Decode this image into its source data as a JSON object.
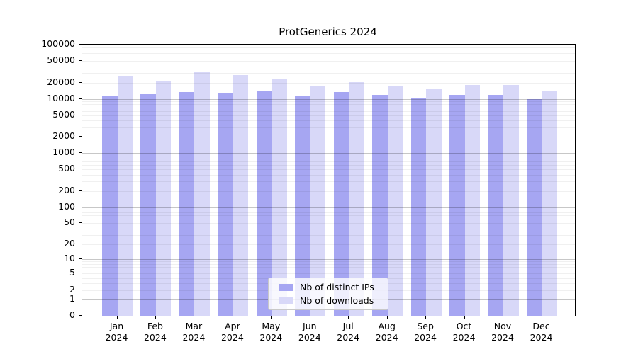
{
  "figure": {
    "title": "ProtGenerics 2024",
    "background": "#ffffff"
  },
  "chart_data": {
    "type": "bar",
    "title": "ProtGenerics 2024",
    "scale": "log10(x+1)",
    "categories": [
      "Jan",
      "Feb",
      "Mar",
      "Apr",
      "May",
      "Jun",
      "Jul",
      "Aug",
      "Sep",
      "Oct",
      "Nov",
      "Dec"
    ],
    "category_year": "2024",
    "series": [
      {
        "name": "Nb of distinct IPs",
        "color": "#a6a6f2",
        "values": [
          11400,
          12200,
          13500,
          12900,
          14100,
          11200,
          13200,
          12000,
          10200,
          11700,
          11700,
          9800
        ]
      },
      {
        "name": "Nb of downloads",
        "color": "#d8d8f8",
        "values": [
          25800,
          20900,
          30900,
          27400,
          22900,
          17600,
          20400,
          17400,
          15500,
          17800,
          18000,
          14000
        ]
      }
    ],
    "yticks": [
      0,
      1,
      2,
      5,
      10,
      20,
      50,
      100,
      200,
      500,
      1000,
      2000,
      5000,
      10000,
      20000,
      50000,
      100000
    ],
    "ylim": [
      0,
      100000
    ],
    "xlabel": "",
    "ylabel": "",
    "grid": {
      "minor_color": "rgba(0,0,0,0.06)",
      "major_color": "rgba(0,0,0,0.22)",
      "minor_values_rule": "k*10^e for k=2..9, e=0..4",
      "major_values": [
        1,
        10,
        100,
        1000,
        10000
      ]
    },
    "legend_position": "inside-bottom-center",
    "frame_color": "#000000"
  }
}
